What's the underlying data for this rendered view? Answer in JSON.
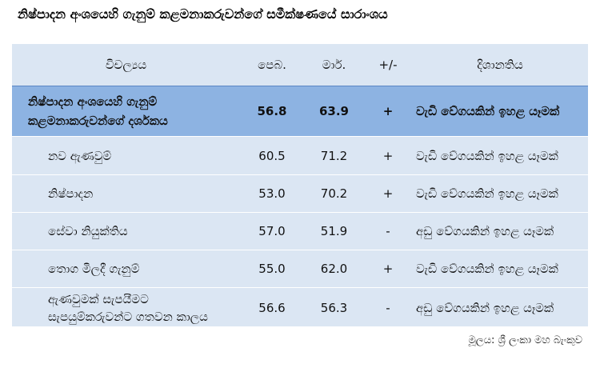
{
  "title": "නිෂ්පාදන අංශයෙහි ගැනුම් කළමනාකරුවන්ගේ සමීක්ෂණයේ සාරාංශය",
  "headers": {
    "item": "විචල්‍යය",
    "feb": "පෙබ.",
    "mar": "මාර්.",
    "change": "+/-",
    "direction": "දිශානතිය"
  },
  "rows": [
    {
      "item_line1": "නිෂ්පාදන අංශයෙහි ගැනුම්",
      "item_line2": "කළමනාකරුවන්ගේ දර්ශකය",
      "feb": "56.8",
      "mar": "63.9",
      "change": "+",
      "direction": "වැඩි වේගයකින් ඉහළ යෑමක්"
    },
    {
      "item_line1": "නව ඇණවුම්",
      "item_line2": "",
      "feb": "60.5",
      "mar": "71.2",
      "change": "+",
      "direction": "වැඩි වේගයකින් ඉහළ යෑමක්"
    },
    {
      "item_line1": "නිෂ්පාදන",
      "item_line2": "",
      "feb": "53.0",
      "mar": "70.2",
      "change": "+",
      "direction": "වැඩි වේගයකින් ඉහළ යෑමක්"
    },
    {
      "item_line1": "සේවා නියුක්තිය",
      "item_line2": "",
      "feb": "57.0",
      "mar": "51.9",
      "change": "-",
      "direction": "අඩු වේගයකින් ඉහළ යෑමක්"
    },
    {
      "item_line1": "තොග මිලදී ගැනුම්",
      "item_line2": "",
      "feb": "55.0",
      "mar": "62.0",
      "change": "+",
      "direction": "වැඩි වේගයකින් ඉහළ යෑමක්"
    },
    {
      "item_line1": "ඇණවුමක් සැපයීමට",
      "item_line2": "සැපයුම්කරුවන්ට ගතවන කාලය",
      "feb": "56.6",
      "mar": "56.3",
      "change": "-",
      "direction": "අඩු වේගයකින් ඉහළ යෑමක්"
    }
  ],
  "source": "මූලය: ශ්‍රී ලංකා මහ බැංකුව"
}
